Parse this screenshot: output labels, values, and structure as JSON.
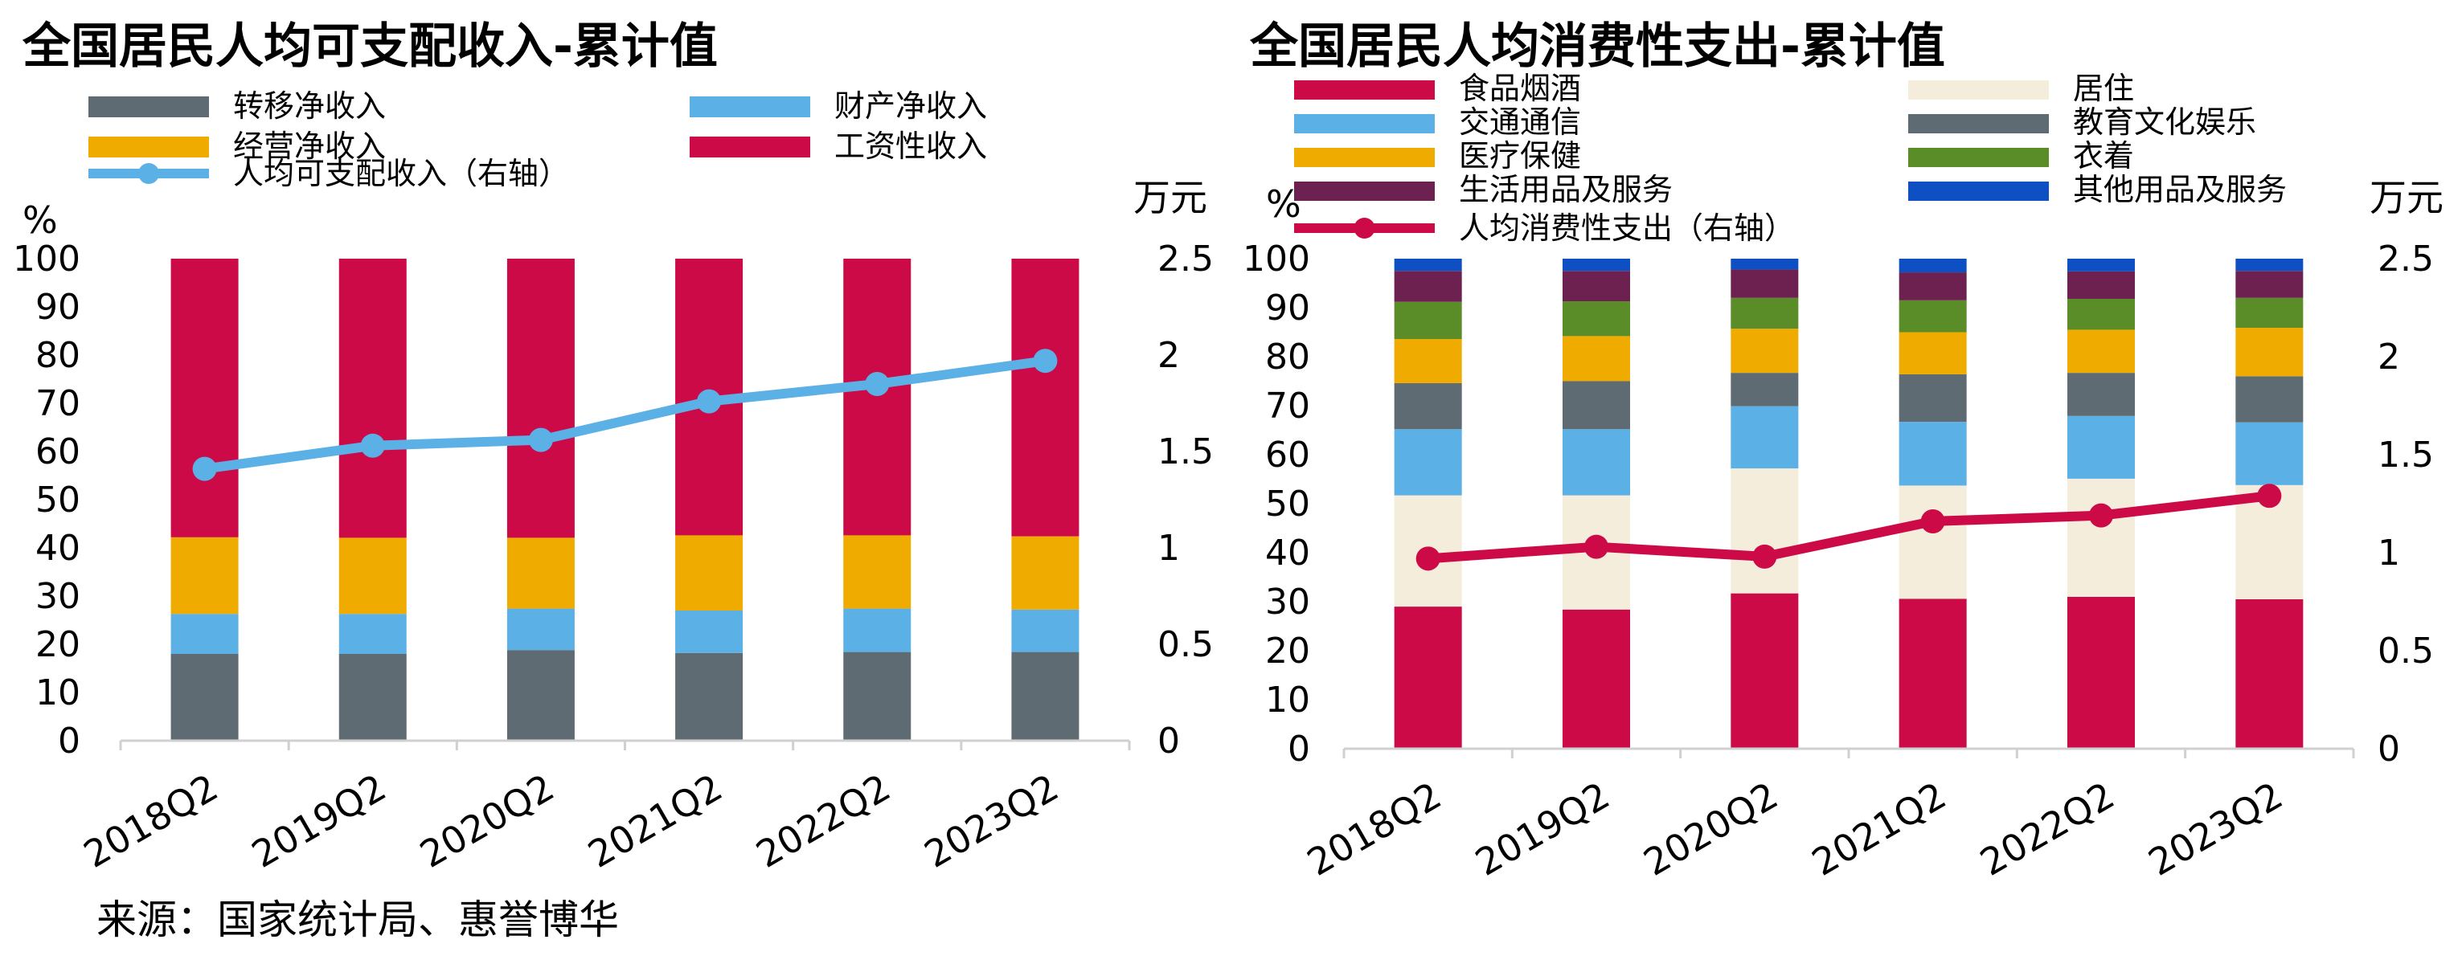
{
  "source": "来源：国家统计局、惠誉博华",
  "chart_data": [
    {
      "type": "bar",
      "stacked": true,
      "title": "全国居民人均可支配收入-累计值",
      "ylabel_left": "%",
      "ylabel_right": "万元",
      "ylim": [
        0,
        100
      ],
      "y_ticks": [
        "0",
        "10",
        "20",
        "30",
        "40",
        "50",
        "60",
        "70",
        "80",
        "90",
        "100"
      ],
      "ylim_right": [
        0,
        2.5
      ],
      "y2_ticks": [
        "0",
        "0.5",
        "1",
        "1.5",
        "2",
        "2.5"
      ],
      "categories": [
        "2018Q2",
        "2019Q2",
        "2020Q2",
        "2021Q2",
        "2022Q2",
        "2023Q2"
      ],
      "series": [
        {
          "name": "转移净收入",
          "color": "#5f6b73",
          "values": [
            18.0,
            18.0,
            18.8,
            18.2,
            18.4,
            18.4
          ]
        },
        {
          "name": "财产净收入",
          "color": "#5bb0e6",
          "values": [
            8.3,
            8.3,
            8.6,
            8.8,
            9.0,
            8.8
          ]
        },
        {
          "name": "经营净收入",
          "color": "#f0ab00",
          "values": [
            15.9,
            15.8,
            14.7,
            15.6,
            15.2,
            15.2
          ]
        },
        {
          "name": "工资性收入",
          "color": "#cc0a47",
          "values": [
            57.8,
            57.9,
            57.9,
            57.4,
            57.4,
            57.6
          ]
        }
      ],
      "line_series": {
        "name": "人均可支配收入（右轴）",
        "color": "#5bb0e6",
        "axis": "right",
        "values": [
          1.41,
          1.53,
          1.56,
          1.76,
          1.85,
          1.97
        ]
      },
      "legend_position": "top"
    },
    {
      "type": "bar",
      "stacked": true,
      "title": "全国居民人均消费性支出-累计值",
      "ylabel_left": "%",
      "ylabel_right": "万元",
      "ylim": [
        0,
        100
      ],
      "y_ticks": [
        "0",
        "10",
        "20",
        "30",
        "40",
        "50",
        "60",
        "70",
        "80",
        "90",
        "100"
      ],
      "ylim_right": [
        0,
        2.5
      ],
      "y2_ticks": [
        "0",
        "0.5",
        "1",
        "1.5",
        "2",
        "2.5"
      ],
      "categories": [
        "2018Q2",
        "2019Q2",
        "2020Q2",
        "2021Q2",
        "2022Q2",
        "2023Q2"
      ],
      "series": [
        {
          "name": "食品烟酒",
          "color": "#cc0a47",
          "values": [
            29.0,
            28.4,
            31.7,
            30.6,
            31.0,
            30.5
          ]
        },
        {
          "name": "居住",
          "color": "#f4eddc",
          "values": [
            22.7,
            23.3,
            25.5,
            23.1,
            24.1,
            23.3
          ]
        },
        {
          "name": "交通通信",
          "color": "#5bb0e6",
          "values": [
            13.5,
            13.5,
            12.7,
            13.0,
            12.8,
            12.8
          ]
        },
        {
          "name": "教育文化娱乐",
          "color": "#5f6b73",
          "values": [
            9.4,
            9.8,
            6.8,
            9.7,
            8.8,
            9.4
          ]
        },
        {
          "name": "医疗保健",
          "color": "#f0ab00",
          "values": [
            9.0,
            9.2,
            9.0,
            8.6,
            8.8,
            9.9
          ]
        },
        {
          "name": "衣着",
          "color": "#5a8c28",
          "values": [
            7.6,
            7.1,
            6.3,
            6.5,
            6.3,
            6.1
          ]
        },
        {
          "name": "生活用品及服务",
          "color": "#6d2150",
          "values": [
            6.3,
            6.2,
            5.8,
            5.7,
            5.6,
            5.5
          ]
        },
        {
          "name": "其他用品及服务",
          "color": "#0f4fc4",
          "values": [
            2.5,
            2.5,
            2.2,
            2.8,
            2.6,
            2.5
          ]
        }
      ],
      "line_series": {
        "name": "人均消费性支出（右轴）",
        "color": "#cc0a47",
        "axis": "right",
        "values": [
          0.97,
          1.03,
          0.98,
          1.16,
          1.19,
          1.29
        ]
      },
      "legend_position": "top"
    }
  ]
}
